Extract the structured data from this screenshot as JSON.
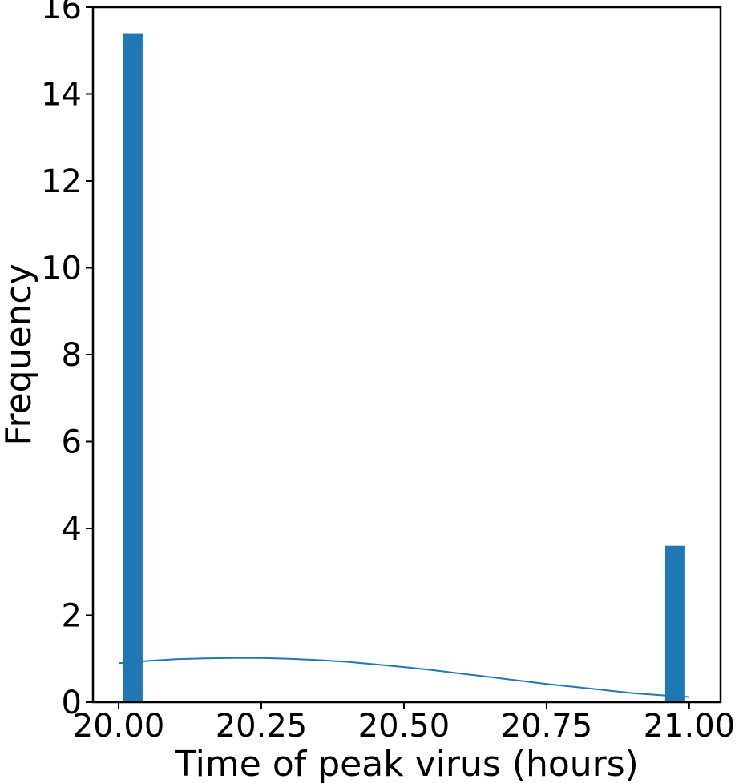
{
  "chart_data": {
    "type": "bar",
    "title": "",
    "xlabel": "Time of peak virus (hours)",
    "ylabel": "Frequency",
    "xlim": [
      19.955,
      21.055
    ],
    "ylim": [
      0,
      16
    ],
    "x_ticks": [
      20.0,
      20.25,
      20.5,
      20.75,
      21.0
    ],
    "x_tick_labels": [
      "20.00",
      "20.25",
      "20.50",
      "20.75",
      "21.00"
    ],
    "y_ticks": [
      0,
      2,
      4,
      6,
      8,
      10,
      12,
      14,
      16
    ],
    "y_tick_labels": [
      "0",
      "2",
      "4",
      "6",
      "8",
      "10",
      "12",
      "14",
      "16"
    ],
    "bar_color": "#1f77b4",
    "line_color": "#1f77b4",
    "grid": false,
    "bars": [
      {
        "x_start": 20.007,
        "x_end": 20.042,
        "value": 15.4
      },
      {
        "x_start": 20.958,
        "x_end": 20.993,
        "value": 3.6
      }
    ],
    "density_curve": {
      "x": [
        20.0,
        20.05,
        20.1,
        20.15,
        20.2,
        20.25,
        20.3,
        20.35,
        20.4,
        20.45,
        20.5,
        20.55,
        20.6,
        20.65,
        20.7,
        20.75,
        20.8,
        20.85,
        20.9,
        20.95,
        21.0
      ],
      "y": [
        0.9,
        0.95,
        0.99,
        1.01,
        1.02,
        1.02,
        1.0,
        0.97,
        0.93,
        0.87,
        0.81,
        0.74,
        0.66,
        0.58,
        0.5,
        0.42,
        0.35,
        0.28,
        0.21,
        0.16,
        0.12
      ]
    }
  }
}
